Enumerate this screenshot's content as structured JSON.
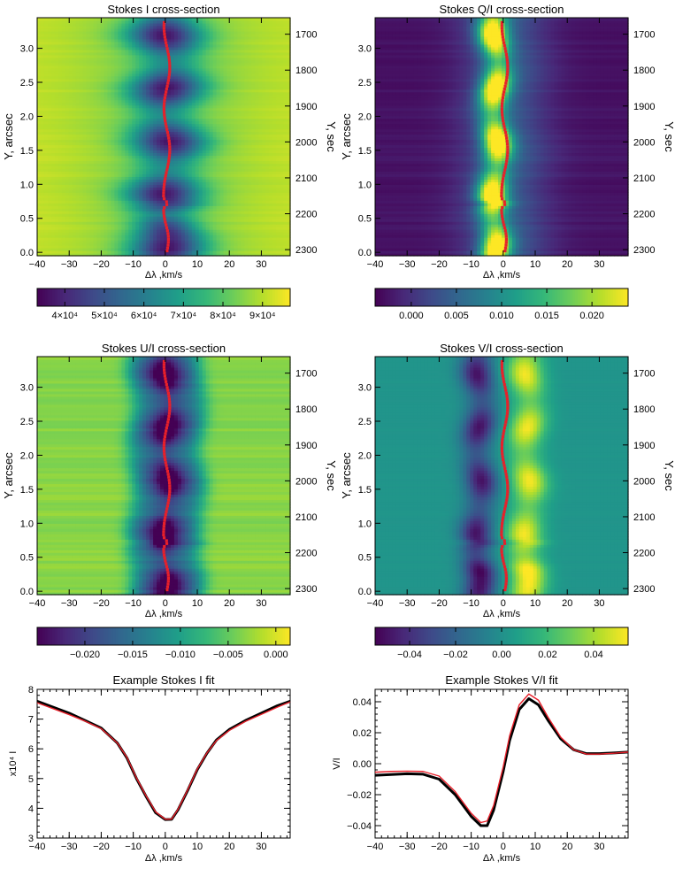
{
  "chart_data": [
    {
      "type": "heatmap",
      "title": "Stokes I cross-section",
      "xlabel": "Δλ ,km/s",
      "ylabel": "Y, arcsec",
      "y2label": "Y, sec",
      "xlim": [
        -40,
        39
      ],
      "ylim": [
        -0.05,
        3.45
      ],
      "y2lim": [
        2317,
        1654
      ],
      "xticks": [
        -40,
        -30,
        -20,
        -10,
        0,
        10,
        20,
        30
      ],
      "yticks": [
        0.0,
        0.5,
        1.0,
        1.5,
        2.0,
        2.5,
        3.0
      ],
      "y2ticks": [
        1700,
        1800,
        1900,
        2000,
        2100,
        2200,
        2300
      ],
      "colorbar": {
        "min": 33000,
        "max": 97000,
        "ticks": [
          40000,
          50000,
          60000,
          70000,
          80000,
          90000
        ],
        "ticklabels": [
          "4×10⁴",
          "5×10⁴",
          "6×10⁴",
          "7×10⁴",
          "8×10⁴",
          "9×10⁴"
        ]
      },
      "pattern": "absorption-core",
      "trace_color": "#e8202a"
    },
    {
      "type": "heatmap",
      "title": "Stokes Q/I cross-section",
      "xlabel": "Δλ ,km/s",
      "ylabel": "Y, arcsec",
      "y2label": "Y, sec",
      "xlim": [
        -40,
        39
      ],
      "ylim": [
        -0.05,
        3.45
      ],
      "y2lim": [
        2317,
        1654
      ],
      "xticks": [
        -40,
        -30,
        -20,
        -10,
        0,
        10,
        20,
        30
      ],
      "yticks": [
        0.0,
        0.5,
        1.0,
        1.5,
        2.0,
        2.5,
        3.0
      ],
      "y2ticks": [
        1700,
        1800,
        1900,
        2000,
        2100,
        2200,
        2300
      ],
      "colorbar": {
        "min": -0.004,
        "max": 0.024,
        "ticks": [
          0.0,
          0.005,
          0.01,
          0.015,
          0.02
        ],
        "ticklabels": [
          "0.000",
          "0.005",
          "0.010",
          "0.015",
          "0.020"
        ]
      },
      "pattern": "q-lobes",
      "trace_color": "#e8202a"
    },
    {
      "type": "heatmap",
      "title": "Stokes U/I cross-section",
      "xlabel": "Δλ ,km/s",
      "ylabel": "Y, arcsec",
      "y2label": "Y, sec",
      "xlim": [
        -40,
        39
      ],
      "ylim": [
        -0.05,
        3.45
      ],
      "y2lim": [
        2317,
        1654
      ],
      "xticks": [
        -40,
        -30,
        -20,
        -10,
        0,
        10,
        20,
        30
      ],
      "yticks": [
        0.0,
        0.5,
        1.0,
        1.5,
        2.0,
        2.5,
        3.0
      ],
      "y2ticks": [
        1700,
        1800,
        1900,
        2000,
        2100,
        2200,
        2300
      ],
      "colorbar": {
        "min": -0.025,
        "max": 0.0015,
        "ticks": [
          -0.02,
          -0.015,
          -0.01,
          -0.005,
          0.0
        ],
        "ticklabels": [
          "−0.020",
          "−0.015",
          "−0.010",
          "−0.005",
          "0.000"
        ]
      },
      "pattern": "u-wide",
      "trace_color": "#e8202a"
    },
    {
      "type": "heatmap",
      "title": "Stokes V/I cross-section",
      "xlabel": "Δλ ,km/s",
      "ylabel": "Y, arcsec",
      "y2label": "Y, sec",
      "xlim": [
        -40,
        39
      ],
      "ylim": [
        -0.05,
        3.45
      ],
      "y2lim": [
        2317,
        1654
      ],
      "xticks": [
        -40,
        -30,
        -20,
        -10,
        0,
        10,
        20,
        30
      ],
      "yticks": [
        0.0,
        0.5,
        1.0,
        1.5,
        2.0,
        2.5,
        3.0
      ],
      "y2ticks": [
        1700,
        1800,
        1900,
        2000,
        2100,
        2200,
        2300
      ],
      "colorbar": {
        "min": -0.055,
        "max": 0.055,
        "ticks": [
          -0.04,
          -0.02,
          0.0,
          0.02,
          0.04
        ],
        "ticklabels": [
          "−0.04",
          "−0.02",
          "0.00",
          "0.02",
          "0.04"
        ]
      },
      "pattern": "v-antisym",
      "trace_color": "#e8202a"
    },
    {
      "type": "line",
      "title": "Example Stokes I fit",
      "xlabel": "Δλ ,km/s",
      "ylabel": "x10⁴ I",
      "xlim": [
        -40,
        39
      ],
      "ylim": [
        3,
        8
      ],
      "xticks": [
        -40,
        -30,
        -20,
        -10,
        0,
        10,
        20,
        30
      ],
      "yticks": [
        3,
        4,
        5,
        6,
        7,
        8
      ],
      "series": [
        {
          "color": "#000000",
          "x": [
            -40,
            -35,
            -30,
            -25,
            -20,
            -15,
            -12,
            -9,
            -6,
            -3,
            0,
            2,
            4,
            7,
            10,
            13,
            16,
            20,
            25,
            30,
            35,
            39
          ],
          "y": [
            7.6,
            7.4,
            7.2,
            6.95,
            6.7,
            6.2,
            5.7,
            5.0,
            4.4,
            3.85,
            3.62,
            3.63,
            3.95,
            4.6,
            5.3,
            5.85,
            6.3,
            6.65,
            6.95,
            7.2,
            7.45,
            7.6
          ]
        },
        {
          "color": "#e8202a",
          "x": [
            -40,
            -35,
            -30,
            -25,
            -20,
            -15,
            -12,
            -9,
            -6,
            -3,
            0,
            2,
            4,
            7,
            10,
            13,
            16,
            20,
            25,
            30,
            35,
            39
          ],
          "y": [
            7.55,
            7.35,
            7.15,
            6.93,
            6.68,
            6.2,
            5.72,
            5.02,
            4.42,
            3.88,
            3.63,
            3.64,
            3.97,
            4.62,
            5.32,
            5.86,
            6.28,
            6.62,
            6.92,
            7.16,
            7.4,
            7.58
          ]
        }
      ]
    },
    {
      "type": "line",
      "title": "Example Stokes V/I fit",
      "xlabel": "Δλ ,km/s",
      "ylabel": "V/I",
      "xlim": [
        -40,
        39
      ],
      "ylim": [
        -0.048,
        0.048
      ],
      "xticks": [
        -40,
        -30,
        -20,
        -10,
        0,
        10,
        20,
        30
      ],
      "yticks": [
        -0.04,
        -0.02,
        0.0,
        0.02,
        0.04
      ],
      "yticklabels": [
        "−0.04",
        "−0.02",
        "0.00",
        "0.02",
        "0.04"
      ],
      "series": [
        {
          "color": "#000000",
          "x": [
            -40,
            -35,
            -30,
            -25,
            -20,
            -15,
            -10,
            -7,
            -5,
            -3,
            0,
            2,
            5,
            8,
            11,
            14,
            18,
            22,
            26,
            30,
            35,
            39
          ],
          "y": [
            -0.0075,
            -0.007,
            -0.0065,
            -0.0068,
            -0.01,
            -0.02,
            -0.034,
            -0.04,
            -0.04,
            -0.03,
            -0.005,
            0.015,
            0.035,
            0.042,
            0.038,
            0.028,
            0.016,
            0.009,
            0.0065,
            0.0065,
            0.007,
            0.0075
          ]
        },
        {
          "color": "#e8202a",
          "x": [
            -40,
            -35,
            -30,
            -25,
            -20,
            -15,
            -10,
            -7,
            -5,
            -3,
            0,
            2,
            5,
            8,
            11,
            14,
            18,
            22,
            26,
            30,
            35,
            39
          ],
          "y": [
            -0.0055,
            -0.005,
            -0.0048,
            -0.005,
            -0.008,
            -0.018,
            -0.032,
            -0.038,
            -0.037,
            -0.027,
            -0.002,
            0.018,
            0.038,
            0.045,
            0.041,
            0.03,
            0.017,
            0.009,
            0.0062,
            0.0062,
            0.0068,
            0.0075
          ]
        }
      ]
    }
  ]
}
